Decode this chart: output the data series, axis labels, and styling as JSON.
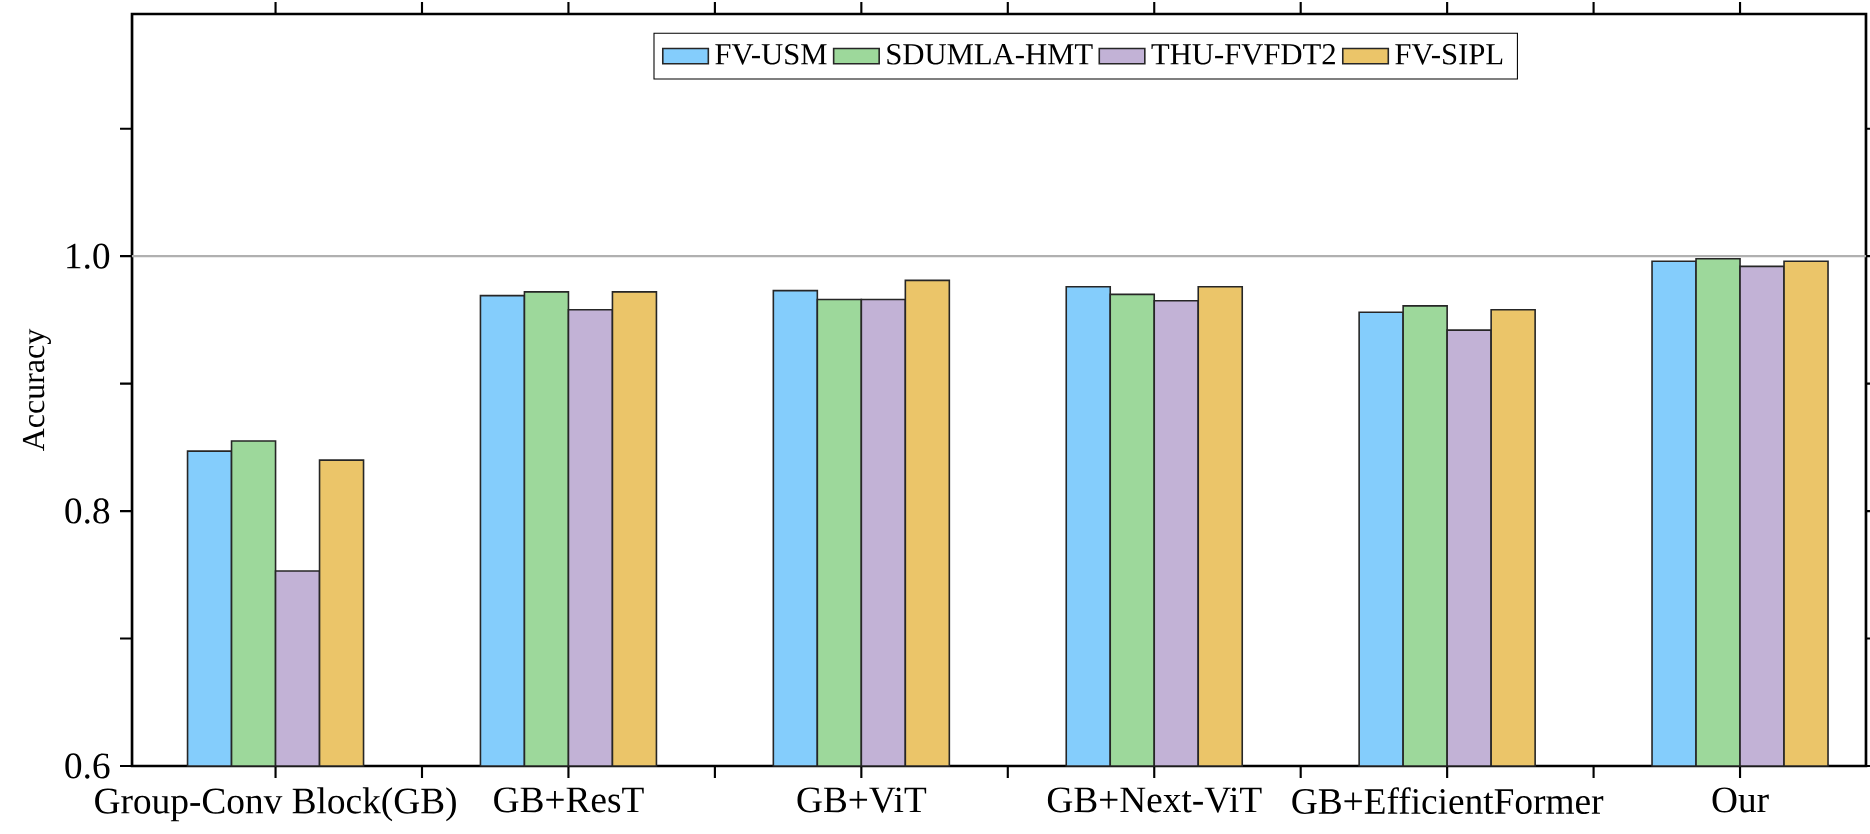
{
  "chart_data": {
    "type": "bar",
    "ylabel": "Accuracy",
    "categories": [
      "Group-Conv Block(GB)",
      "GB+ResT",
      "GB+ViT",
      "GB+Next-ViT",
      "GB+EfficientFormer",
      "Our"
    ],
    "series": [
      {
        "name": "FV-USM",
        "color": "#84cdfc",
        "values": [
          0.847,
          0.969,
          0.973,
          0.976,
          0.956,
          0.996
        ]
      },
      {
        "name": "SDUMLA-HMT",
        "color": "#9dd89b",
        "values": [
          0.855,
          0.972,
          0.966,
          0.97,
          0.961,
          0.998
        ]
      },
      {
        "name": "THU-FVFDT2",
        "color": "#c2b2d6",
        "values": [
          0.753,
          0.958,
          0.966,
          0.965,
          0.942,
          0.992
        ]
      },
      {
        "name": "FV-SIPL",
        "color": "#ebc569",
        "values": [
          0.84,
          0.972,
          0.981,
          0.976,
          0.958,
          0.996
        ]
      }
    ],
    "ylim": [
      0.6,
      1.19
    ],
    "yticks": [
      0.6,
      {
        "value": 0.7,
        "label": null
      },
      0.8,
      {
        "value": 0.9,
        "label": null
      },
      {
        "value": 1.0,
        "label": "1.0"
      },
      {
        "value": 1.1,
        "label": null
      }
    ],
    "ref_lines": [
      {
        "axis": "y",
        "value": 1.0,
        "color": "#b0b0b0"
      }
    ],
    "legend": "top",
    "grid": false
  }
}
